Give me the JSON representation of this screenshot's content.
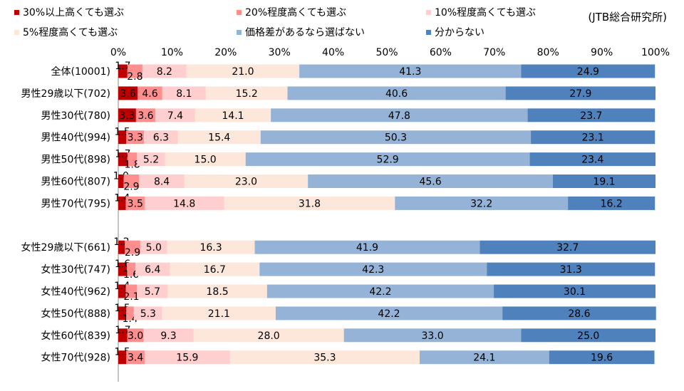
{
  "source_note": "(JTB総合研究所)",
  "chart_data": {
    "type": "bar",
    "orientation": "horizontal",
    "stacked": true,
    "percent_axis": true,
    "xlim": [
      0,
      100
    ],
    "ticks": [
      "0%",
      "10%",
      "20%",
      "30%",
      "40%",
      "50%",
      "60%",
      "70%",
      "80%",
      "90%",
      "100%"
    ],
    "grid": false,
    "legend_position": "top",
    "categories": [
      "全体(10001)",
      "男性29歳以下(702)",
      "男性30代(780)",
      "男性40代(994)",
      "男性50代(898)",
      "男性60代(807)",
      "男性70代(795)",
      "",
      "女性29歳以下(661)",
      "女性30代(747)",
      "女性40代(962)",
      "女性50代(888)",
      "女性60代(839)",
      "女性70代(928)"
    ],
    "series": [
      {
        "name": "30%以上高くても選ぶ",
        "color": "#c00000",
        "values": [
          1.7,
          3.6,
          3.3,
          1.5,
          1.7,
          1.0,
          1.4,
          null,
          1.2,
          1.6,
          1.4,
          1.5,
          1.7,
          1.5
        ]
      },
      {
        "name": "20%程度高くても選ぶ",
        "color": "#ff8f8f",
        "values": [
          2.8,
          4.6,
          3.6,
          3.3,
          1.8,
          2.9,
          3.5,
          null,
          2.9,
          1.6,
          2.1,
          1.4,
          3.0,
          3.4
        ]
      },
      {
        "name": "10%程度高くても選ぶ",
        "color": "#ffcfcf",
        "values": [
          8.2,
          8.1,
          7.4,
          6.3,
          5.2,
          8.4,
          14.8,
          null,
          5.0,
          6.4,
          5.7,
          5.3,
          9.3,
          15.9
        ]
      },
      {
        "name": "5%程度高くても選ぶ",
        "color": "#fde6da",
        "values": [
          21.0,
          15.2,
          14.1,
          15.4,
          15.0,
          23.0,
          31.8,
          null,
          16.3,
          16.7,
          18.5,
          21.1,
          28.0,
          35.3
        ]
      },
      {
        "name": "価格差があるなら選ばない",
        "color": "#95b3d7",
        "values": [
          41.3,
          40.6,
          47.8,
          50.3,
          52.9,
          45.6,
          32.2,
          null,
          41.9,
          42.3,
          42.2,
          42.2,
          33.0,
          24.1
        ]
      },
      {
        "name": "分からない",
        "color": "#4f81bd",
        "values": [
          24.9,
          27.9,
          23.7,
          23.1,
          23.4,
          19.1,
          16.2,
          null,
          32.7,
          31.3,
          30.1,
          28.6,
          25.0,
          19.6
        ]
      }
    ]
  }
}
